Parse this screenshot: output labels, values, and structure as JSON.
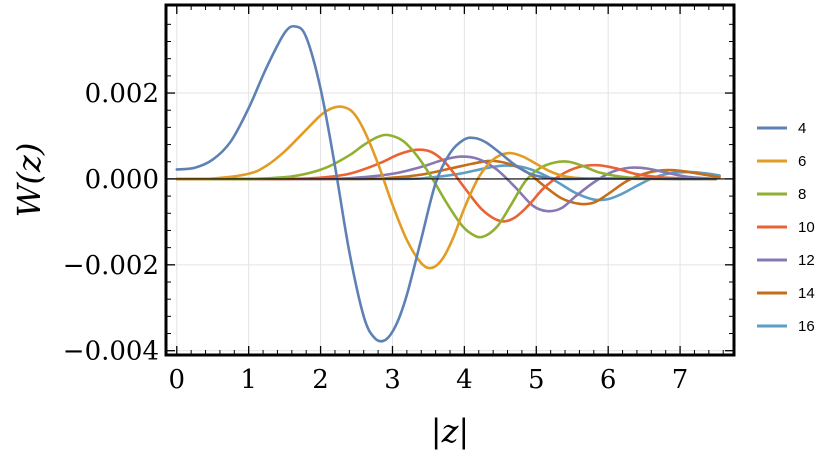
{
  "chart_data": {
    "type": "line",
    "xlabel": "|z|",
    "ylabel": "W(z)",
    "xlim": [
      -0.15,
      7.75
    ],
    "ylim": [
      -0.0041,
      0.00405
    ],
    "xticks": [
      0,
      1,
      2,
      3,
      4,
      5,
      6,
      7
    ],
    "xtick_labels": [
      "0",
      "1",
      "2",
      "3",
      "4",
      "5",
      "6",
      "7"
    ],
    "yticks": [
      -0.004,
      -0.002,
      0.0,
      0.002
    ],
    "ytick_labels": [
      "−0.004",
      "−0.002",
      "0.000",
      "0.002"
    ],
    "grid": true,
    "legend_position": "right",
    "series": [
      {
        "name": "4",
        "color": "#5E81B5",
        "x": [
          0,
          0.25,
          0.5,
          0.75,
          1,
          1.25,
          1.5,
          1.65,
          1.8,
          2,
          2.2,
          2.4,
          2.6,
          2.75,
          2.9,
          3.05,
          3.2,
          3.4,
          3.6,
          3.8,
          4,
          4.15,
          4.3,
          4.5,
          4.7,
          4.9,
          5.1,
          5.4,
          5.8,
          6.3,
          7,
          7.5
        ],
        "y": [
          0.00022,
          0.00026,
          0.00045,
          0.00087,
          0.00165,
          0.0026,
          0.0034,
          0.00355,
          0.0033,
          0.0021,
          0.0003,
          -0.0017,
          -0.0032,
          -0.0037,
          -0.00375,
          -0.0034,
          -0.0027,
          -0.0014,
          -0.0001,
          0.0006,
          0.00092,
          0.00095,
          0.00085,
          0.0006,
          0.00033,
          0.00013,
          4e-05,
          0.0,
          1e-05,
          1e-05,
          0.0,
          0.0
        ]
      },
      {
        "name": "6",
        "color": "#E19C24",
        "x": [
          0,
          0.5,
          1,
          1.25,
          1.5,
          1.75,
          2,
          2.15,
          2.3,
          2.45,
          2.6,
          2.8,
          3,
          3.2,
          3.4,
          3.55,
          3.7,
          3.85,
          4,
          4.2,
          4.4,
          4.6,
          4.8,
          5,
          5.2,
          5.4,
          5.7,
          6.1,
          6.6,
          7.5
        ],
        "y": [
          0.0,
          1e-05,
          0.00012,
          0.00031,
          0.00064,
          0.00106,
          0.00148,
          0.00164,
          0.00168,
          0.00155,
          0.00115,
          0.00035,
          -0.0006,
          -0.00142,
          -0.00196,
          -0.00207,
          -0.00185,
          -0.00135,
          -0.00068,
          4e-05,
          0.00045,
          0.0006,
          0.00053,
          0.00035,
          0.00017,
          6e-05,
          1e-05,
          1e-05,
          0.0,
          0.0
        ]
      },
      {
        "name": "8",
        "color": "#8FB032",
        "x": [
          0,
          1,
          1.5,
          1.8,
          2.1,
          2.4,
          2.6,
          2.8,
          2.95,
          3.15,
          3.35,
          3.55,
          3.75,
          3.95,
          4.1,
          4.25,
          4.45,
          4.65,
          4.85,
          5.05,
          5.25,
          5.45,
          5.65,
          5.9,
          6.3,
          7,
          7.5
        ],
        "y": [
          0.0,
          0.0,
          4e-05,
          0.00012,
          0.00028,
          0.00055,
          0.00079,
          0.00098,
          0.00102,
          0.00088,
          0.00052,
          2e-05,
          -0.00055,
          -0.00105,
          -0.00128,
          -0.00135,
          -0.00112,
          -0.0006,
          -5e-05,
          0.00025,
          0.00038,
          0.0004,
          0.0003,
          0.00014,
          3e-05,
          0.0,
          0.0
        ]
      },
      {
        "name": "10",
        "color": "#EB6235",
        "x": [
          0,
          1.5,
          2,
          2.4,
          2.8,
          3.1,
          3.35,
          3.55,
          3.75,
          4,
          4.25,
          4.5,
          4.7,
          4.9,
          5.1,
          5.35,
          5.6,
          5.85,
          6.1,
          6.4,
          6.8,
          7.5
        ],
        "y": [
          0.0,
          0.0,
          3e-05,
          0.00012,
          0.00035,
          0.00058,
          0.00068,
          0.00062,
          0.00035,
          -0.0002,
          -0.00072,
          -0.00098,
          -0.0009,
          -0.0006,
          -0.00022,
          0.0001,
          0.00028,
          0.00032,
          0.00025,
          0.00011,
          3e-05,
          0.0
        ]
      },
      {
        "name": "12",
        "color": "#8778B3",
        "x": [
          0,
          2,
          2.5,
          3,
          3.4,
          3.7,
          3.95,
          4.2,
          4.45,
          4.7,
          4.95,
          5.15,
          5.35,
          5.55,
          5.8,
          6.05,
          6.3,
          6.55,
          6.8,
          7.1,
          7.5
        ],
        "y": [
          0.0,
          0.0,
          3e-05,
          0.00012,
          0.00028,
          0.00044,
          0.00052,
          0.00046,
          0.00022,
          -0.00018,
          -0.00062,
          -0.00075,
          -0.00068,
          -0.0004,
          -8e-05,
          0.00016,
          0.00026,
          0.00024,
          0.00015,
          5e-05,
          0.0
        ]
      },
      {
        "name": "14",
        "color": "#C56E1A",
        "x": [
          0,
          2.5,
          3,
          3.4,
          3.8,
          4.1,
          4.35,
          4.6,
          4.85,
          5.1,
          5.35,
          5.6,
          5.8,
          6,
          6.25,
          6.5,
          6.75,
          7,
          7.3,
          7.55
        ],
        "y": [
          0.0,
          0.0,
          3e-05,
          0.0001,
          0.00024,
          0.00035,
          0.00042,
          0.00036,
          0.00018,
          -0.00015,
          -0.00045,
          -0.00058,
          -0.00055,
          -0.00035,
          -6e-05,
          0.00012,
          0.0002,
          0.00019,
          0.00011,
          4e-05
        ]
      },
      {
        "name": "16",
        "color": "#5D9EC7",
        "x": [
          0,
          3,
          3.5,
          3.9,
          4.3,
          4.55,
          4.8,
          5.05,
          5.3,
          5.55,
          5.8,
          6,
          6.2,
          6.4,
          6.65,
          6.9,
          7.15,
          7.35,
          7.55
        ],
        "y": [
          0.0,
          0.0,
          3e-05,
          0.00011,
          0.00025,
          0.00031,
          0.00028,
          0.00014,
          -8e-05,
          -0.00033,
          -0.00048,
          -0.00047,
          -0.00034,
          -0.00016,
          4e-05,
          0.00014,
          0.00016,
          0.00013,
          8e-05
        ]
      }
    ]
  }
}
